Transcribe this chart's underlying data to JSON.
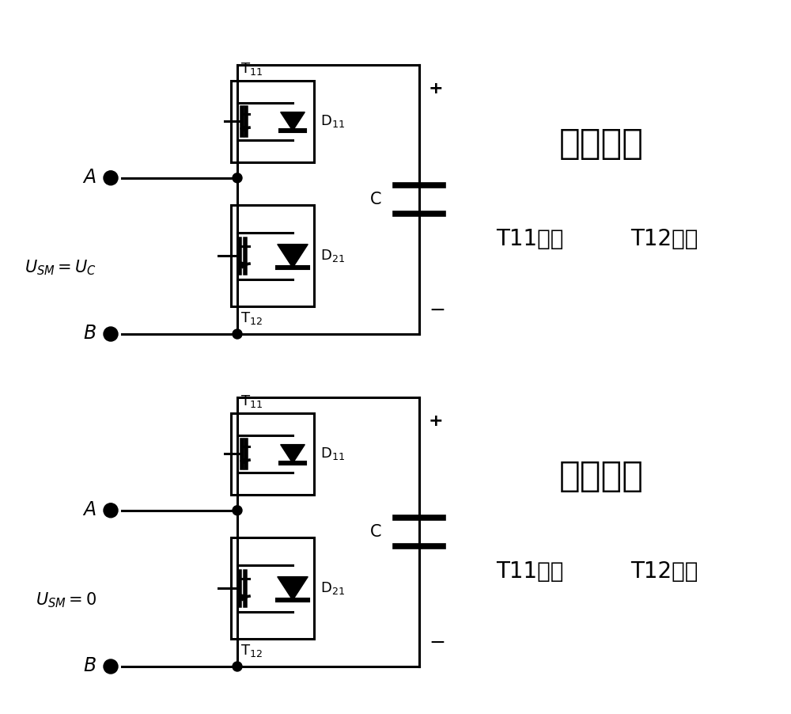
{
  "bg_color": "#ffffff",
  "line_color": "#000000",
  "lw": 2.2,
  "figsize": [
    10.0,
    9.02
  ],
  "dpi": 100,
  "top_title": "投入状态",
  "top_sub1": "T11开通",
  "top_sub2": "T12关断",
  "top_usm": "$U_{SM}=U_C$",
  "bot_title": "切除状态",
  "bot_sub1": "T11关断",
  "bot_sub2": "T12开通",
  "bot_usm": "$U_{SM}=0$"
}
